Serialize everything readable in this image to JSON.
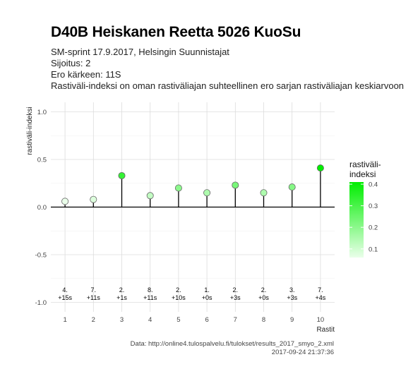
{
  "header": {
    "title": "D40B Heiskanen Reetta 5026 KuoSu",
    "subtitle_lines": [
      "SM-sprint 17.9.2017, Helsingin Suunnistajat",
      "Sijoitus: 2",
      "Ero kärkeen: 11S",
      "Rastiväli-indeksi on oman rastiväliajan suhteellinen ero sarjan rastiväliajan keskiarvoon"
    ]
  },
  "chart_data": {
    "type": "lollipop",
    "xlabel": "Rastit",
    "ylabel": "rastiväli-indeksi",
    "x": [
      1,
      2,
      3,
      4,
      5,
      6,
      7,
      8,
      9,
      10
    ],
    "values": [
      0.06,
      0.08,
      0.33,
      0.12,
      0.2,
      0.15,
      0.23,
      0.15,
      0.21,
      0.41
    ],
    "point_labels": [
      [
        "4.",
        "+15s"
      ],
      [
        "7.",
        "+11s"
      ],
      [
        "2.",
        "+1s"
      ],
      [
        "8.",
        "+11s"
      ],
      [
        "2.",
        "+10s"
      ],
      [
        "1.",
        "+0s"
      ],
      [
        "2.",
        "+3s"
      ],
      [
        "2.",
        "+0s"
      ],
      [
        "3.",
        "+3s"
      ],
      [
        "7.",
        "+4s"
      ]
    ],
    "ylim": [
      -1.0,
      1.0
    ],
    "yticks": [
      -1.0,
      -0.5,
      0.0,
      0.5,
      1.0
    ],
    "ytick_labels": [
      "-1.0",
      "-0.5",
      "0.0",
      "0.5",
      "1.0"
    ],
    "xticks": [
      1,
      2,
      3,
      4,
      5,
      6,
      7,
      8,
      9,
      10
    ],
    "xtick_labels": [
      "1",
      "2",
      "3",
      "4",
      "5",
      "6",
      "7",
      "8",
      "9",
      "10"
    ],
    "grid": true,
    "legend": {
      "title_lines": [
        "rastiväli-",
        "indeksi"
      ],
      "placement": "right",
      "ticks": [
        0.1,
        0.2,
        0.3,
        0.4
      ],
      "tick_labels": [
        "0.1",
        "0.2",
        "0.3",
        "0.4"
      ],
      "color_low": "#eaffea",
      "color_high": "#00ee00",
      "range": [
        0.06,
        0.41
      ]
    }
  },
  "caption": {
    "source": "Data: http://online4.tulospalvelu.fi/tulokset/results_2017_smyo_2.xml",
    "timestamp": "2017-09-24 21:37:36"
  }
}
